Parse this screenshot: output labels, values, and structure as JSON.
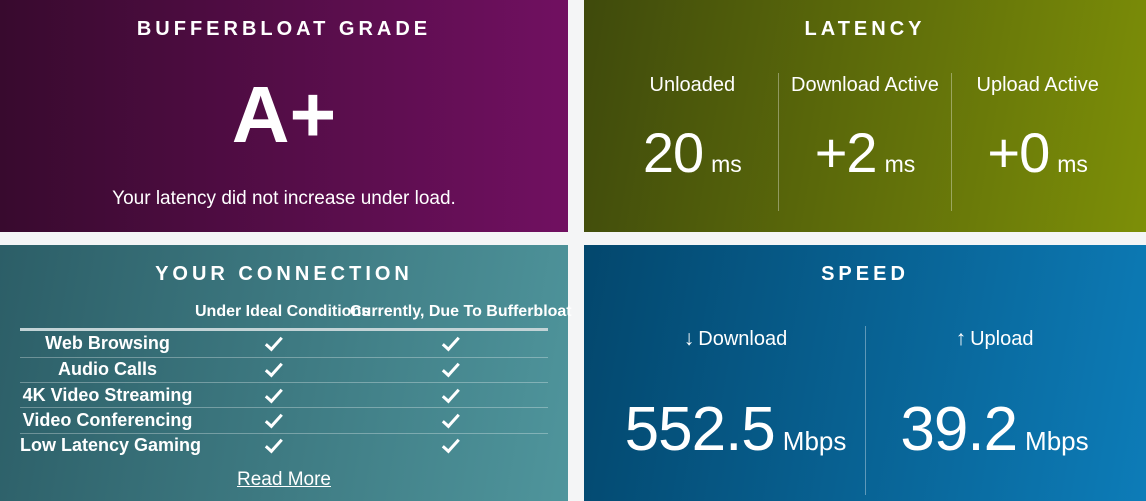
{
  "colors": {
    "page_background": "#f4f5f6",
    "grade_gradient": [
      "#380a2e",
      "#711061"
    ],
    "latency_gradient": [
      "#3f4a0c",
      "#7d8f08"
    ],
    "connection_gradient": [
      "#2c5e67",
      "#4f959c"
    ],
    "speed_gradient": [
      "#03476d",
      "#0d7cb8"
    ],
    "text": "#ffffff"
  },
  "grade": {
    "title": "BUFFERBLOAT GRADE",
    "value": "A+",
    "description": "Your latency did not increase under load."
  },
  "latency": {
    "title": "LATENCY",
    "metrics": [
      {
        "label": "Unloaded",
        "value": "20",
        "unit": "ms"
      },
      {
        "label": "Download Active",
        "value": "+2",
        "unit": "ms"
      },
      {
        "label": "Upload Active",
        "value": "+0",
        "unit": "ms"
      }
    ]
  },
  "connection": {
    "title": "YOUR CONNECTION",
    "columns": [
      "Under Ideal Conditions",
      "Currently, Due To Bufferbloat"
    ],
    "rows": [
      {
        "label": "Web Browsing",
        "ideal": true,
        "current": true
      },
      {
        "label": "Audio Calls",
        "ideal": true,
        "current": true
      },
      {
        "label": "4K Video Streaming",
        "ideal": true,
        "current": true
      },
      {
        "label": "Video Conferencing",
        "ideal": true,
        "current": true
      },
      {
        "label": "Low Latency Gaming",
        "ideal": true,
        "current": true
      }
    ],
    "read_more_label": "Read More"
  },
  "speed": {
    "title": "SPEED",
    "metrics": [
      {
        "icon": "↓",
        "label": "Download",
        "value": "552.5",
        "unit": "Mbps"
      },
      {
        "icon": "↑",
        "label": "Upload",
        "value": "39.2",
        "unit": "Mbps"
      }
    ]
  }
}
